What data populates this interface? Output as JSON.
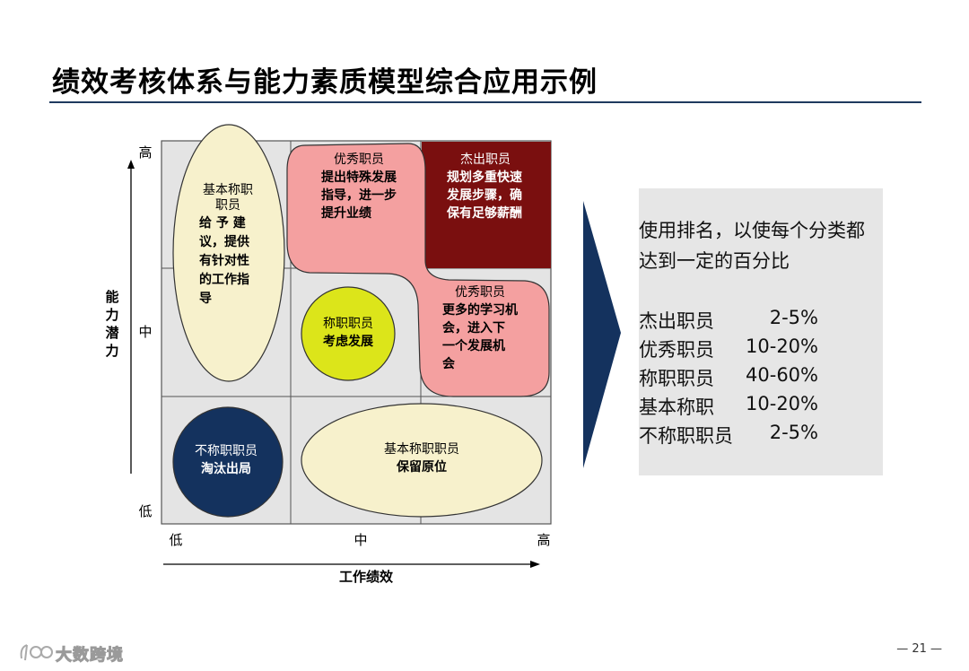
{
  "title": "绩效考核体系与能力素质模型综合应用示例",
  "axes": {
    "y_label": "能力潜力",
    "x_label": "工作绩效",
    "y_ticks": [
      "高",
      "中",
      "低"
    ],
    "x_ticks": [
      "低",
      "中",
      "高"
    ]
  },
  "cells": {
    "basic_left": {
      "name": "基本称职职员",
      "action": [
        "给 予 建",
        "议，提供",
        "有针对性",
        "的工作指",
        "导"
      ]
    },
    "excellent_top": {
      "name": "优秀职员",
      "action": [
        "提出特殊发展",
        "指导，进一步",
        "提升业绩"
      ]
    },
    "outstanding": {
      "name": "杰出职员",
      "action": [
        "规划多重快速",
        "发展步骤，确",
        "保有足够薪酬"
      ]
    },
    "competent": {
      "name": "称职职员",
      "action": "考虑发展"
    },
    "excellent_right": {
      "name": "优秀职员",
      "action": [
        "更多的学习机",
        "会，进入下",
        "一个发展机",
        "会"
      ]
    },
    "incompetent": {
      "name": "不称职职员",
      "action": "淘汰出局"
    },
    "basic_bottom": {
      "name": "基本称职职员",
      "action": "保留原位"
    }
  },
  "panel": {
    "note": [
      "使用排名，以使每个分类都",
      "达到一定的百分比"
    ],
    "rows": [
      {
        "category": "杰出职员",
        "percent": "2-5%"
      },
      {
        "category": "优秀职员",
        "percent": "10-20%"
      },
      {
        "category": "称职职员",
        "percent": "40-60%"
      },
      {
        "category": "基本称职",
        "percent": "10-20%"
      },
      {
        "category": "不称职职员",
        "percent": "2-5%"
      }
    ]
  },
  "footer": {
    "logo_text": "大数跨境",
    "page_number": "— 21 —"
  },
  "colors": {
    "grid_bg": "#e4e4e4",
    "outstanding_fill": "#7a0f0f",
    "excellent_fill": "#f4a0a0",
    "competent_fill": "#dce51a",
    "basic_fill": "#f7f1cc",
    "incompetent_fill": "#14325e",
    "arrow_fill": "#14325e",
    "rule": "#1f3a5f"
  }
}
